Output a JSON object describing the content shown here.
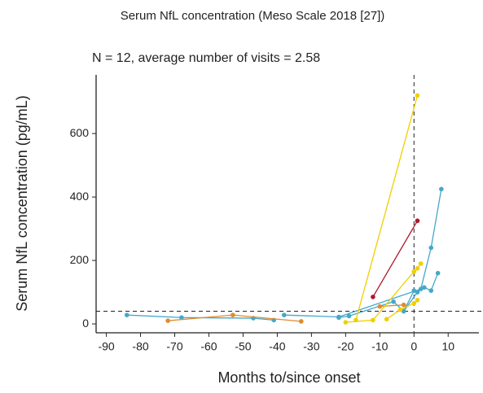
{
  "chart_data": {
    "type": "line",
    "title": "Serum NfL concentration (Meso Scale 2018 [27])",
    "subtitle": "N = 12, average number of visits = 2.58",
    "x_label": "Months to/since onset",
    "y_label": "Serum NfL concentration (pg/mL)",
    "xlim": [
      -93,
      19
    ],
    "ylim": [
      -28,
      785
    ],
    "xticks": [
      -90,
      -80,
      -70,
      -60,
      -50,
      -40,
      -30,
      -20,
      -10,
      0,
      10
    ],
    "yticks": [
      0,
      200,
      400,
      600
    ],
    "hline": 40,
    "vline": 0,
    "series": [
      {
        "color": "#45a8c8",
        "x": [
          -84,
          -68,
          -47,
          -41
        ],
        "values": [
          28,
          20,
          18,
          12
        ]
      },
      {
        "color": "#45a8c8",
        "x": [
          -38,
          -22,
          2,
          5,
          8
        ],
        "values": [
          28,
          22,
          110,
          240,
          425
        ]
      },
      {
        "color": "#45a8c8",
        "x": [
          -22,
          -19,
          -6,
          -3,
          0
        ],
        "values": [
          20,
          25,
          70,
          40,
          105
        ]
      },
      {
        "color": "#45a8c8",
        "x": [
          -3,
          1,
          3,
          5,
          7
        ],
        "values": [
          40,
          100,
          115,
          105,
          160
        ]
      },
      {
        "color": "#e08a2e",
        "x": [
          -72,
          -53,
          -33
        ],
        "values": [
          10,
          28,
          8
        ]
      },
      {
        "color": "#e08a2e",
        "x": [
          -10,
          -3
        ],
        "values": [
          55,
          60
        ]
      },
      {
        "color": "#f0cf00",
        "x": [
          -17,
          1
        ],
        "values": [
          12,
          720
        ]
      },
      {
        "color": "#f0cf00",
        "x": [
          -20,
          -12,
          0,
          1,
          2
        ],
        "values": [
          5,
          12,
          165,
          175,
          190
        ]
      },
      {
        "color": "#f0cf00",
        "x": [
          -8,
          -4,
          0,
          1
        ],
        "values": [
          15,
          45,
          65,
          75
        ]
      },
      {
        "color": "#b0182b",
        "x": [
          -12,
          1
        ],
        "values": [
          85,
          325
        ]
      }
    ]
  }
}
